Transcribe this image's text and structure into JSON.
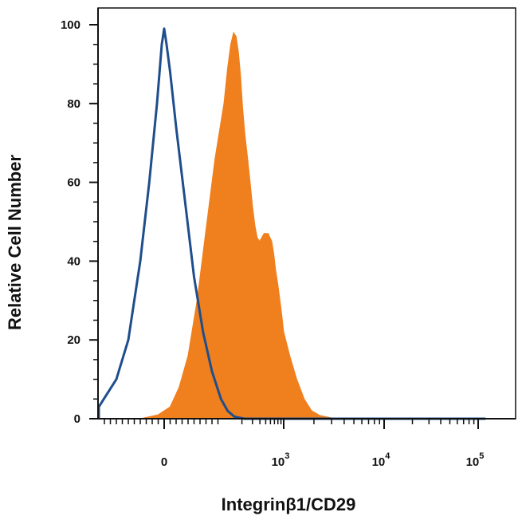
{
  "chart_data": {
    "type": "area",
    "xlabel": "Integrinβ1/CD29",
    "ylabel": "Relative Cell Number",
    "x_scale": "biexponential",
    "x_ticks": [
      {
        "value": 0,
        "base": "0",
        "exp": ""
      },
      {
        "value": 1000,
        "base": "10",
        "exp": "3"
      },
      {
        "value": 10000,
        "base": "10",
        "exp": "4"
      },
      {
        "value": 100000,
        "base": "10",
        "exp": "5"
      }
    ],
    "y_ticks": [
      "0",
      "20",
      "40",
      "60",
      "80",
      "100"
    ],
    "ylim": [
      0,
      100
    ],
    "grid": false,
    "legend": "none",
    "series": [
      {
        "style": "filled",
        "color": "#F07F1E",
        "points": [
          [
            -40,
            0
          ],
          [
            -10,
            1
          ],
          [
            10,
            3
          ],
          [
            25,
            8
          ],
          [
            40,
            16
          ],
          [
            55,
            30
          ],
          [
            70,
            48
          ],
          [
            85,
            66
          ],
          [
            100,
            80
          ],
          [
            115,
            89
          ],
          [
            130,
            95
          ],
          [
            145,
            98
          ],
          [
            160,
            97
          ],
          [
            175,
            93
          ],
          [
            190,
            87
          ],
          [
            205,
            79
          ],
          [
            225,
            72
          ],
          [
            250,
            66
          ],
          [
            275,
            60
          ],
          [
            300,
            54
          ],
          [
            330,
            49
          ],
          [
            360,
            46
          ],
          [
            395,
            45
          ],
          [
            430,
            46
          ],
          [
            470,
            47
          ],
          [
            510,
            47
          ],
          [
            550,
            47
          ],
          [
            590,
            46
          ],
          [
            630,
            45
          ],
          [
            680,
            42
          ],
          [
            730,
            38
          ],
          [
            800,
            34
          ],
          [
            900,
            28
          ],
          [
            1000,
            22
          ],
          [
            1150,
            16
          ],
          [
            1350,
            10
          ],
          [
            1600,
            5
          ],
          [
            1900,
            2
          ],
          [
            2300,
            0.8
          ],
          [
            3000,
            0.2
          ],
          [
            5000,
            0
          ],
          [
            120000,
            0
          ]
        ]
      },
      {
        "style": "outline",
        "color": "#1F4E8C",
        "points": [
          [
            -300,
            0
          ],
          [
            -180,
            0.5
          ],
          [
            -120,
            3
          ],
          [
            -80,
            10
          ],
          [
            -60,
            20
          ],
          [
            -40,
            40
          ],
          [
            -25,
            60
          ],
          [
            -12,
            80
          ],
          [
            -4,
            95
          ],
          [
            0,
            99
          ],
          [
            4,
            95
          ],
          [
            10,
            88
          ],
          [
            20,
            74
          ],
          [
            35,
            55
          ],
          [
            50,
            36
          ],
          [
            65,
            22
          ],
          [
            80,
            12
          ],
          [
            95,
            5
          ],
          [
            115,
            2
          ],
          [
            150,
            0.5
          ],
          [
            220,
            0
          ],
          [
            120000,
            0
          ]
        ]
      }
    ]
  }
}
